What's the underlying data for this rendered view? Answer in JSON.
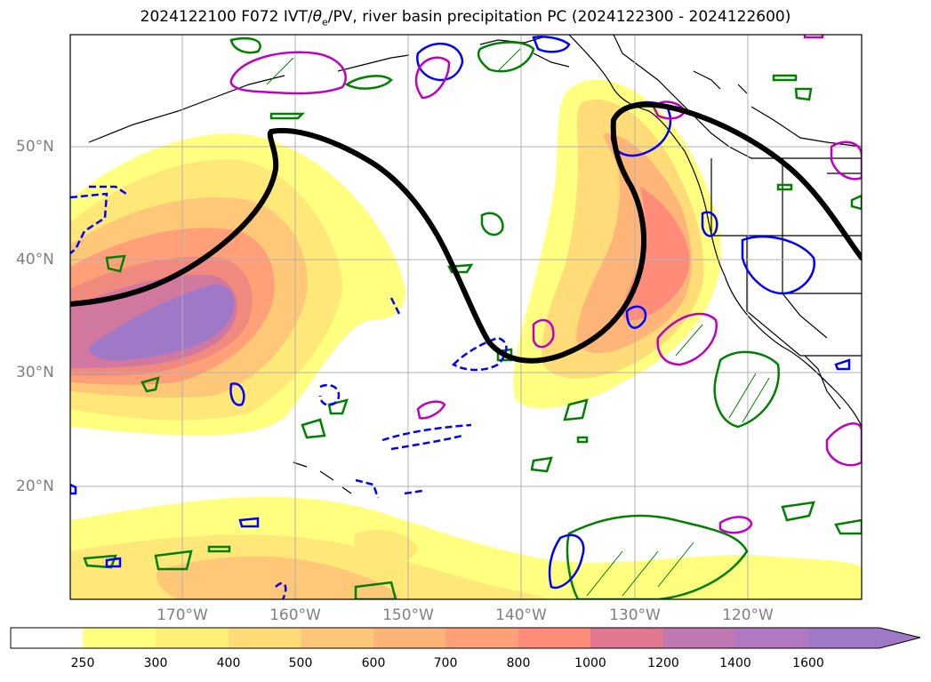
{
  "title_main": "2024122100 F072 IVT/",
  "title_theta": "θ",
  "title_theta_sub": "e",
  "title_rest": "/PV, river basin precipitation PC (2024122300 - 2024122600)",
  "lat_labels": [
    "50°N",
    "40°N",
    "30°N",
    "20°N"
  ],
  "lon_labels": [
    "170°W",
    "160°W",
    "150°W",
    "140°W",
    "130°W",
    "120°W"
  ],
  "colorbar": {
    "ticks": [
      "250",
      "300",
      "400",
      "500",
      "600",
      "700",
      "800",
      "1000",
      "1200",
      "1400",
      "1600"
    ],
    "colors": [
      "#ffffff",
      "#ffff80",
      "#fff07a",
      "#ffdc78",
      "#ffc878",
      "#ffb478",
      "#ffa078",
      "#ff8c78",
      "#e07890",
      "#c078b0",
      "#a078c8"
    ],
    "extend": "max"
  },
  "layers": {
    "ivt_fill": "IVT shading",
    "pv_contour_color": "#000000",
    "green_contour_color": "#008000",
    "blue_contour_color": "#0000ff",
    "magenta_contour_color": "#c000c0"
  }
}
